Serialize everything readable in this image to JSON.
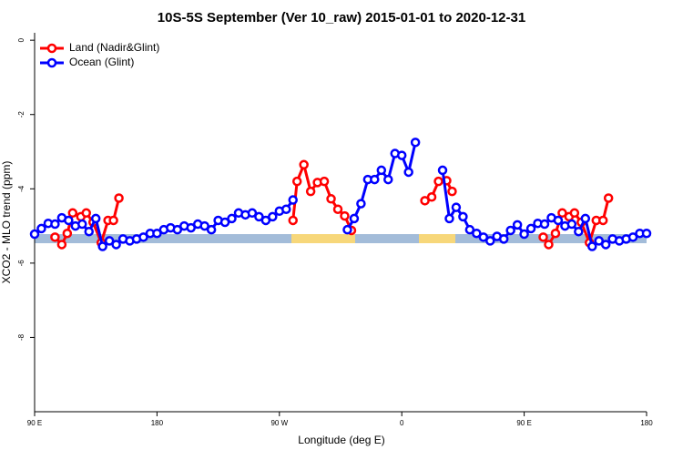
{
  "chart_data": {
    "type": "line",
    "title": "10S-5S September (Ver 10_raw)   2015-01-01 to 2020-12-31",
    "x_label": "Longitude (deg E)",
    "y_label": "XCO2 - MLO trend (ppm)",
    "xlim": [
      90,
      540
    ],
    "ylim": [
      -10,
      0.2
    ],
    "xticks": [
      {
        "value": 90,
        "label": "90 E"
      },
      180,
      {
        "value": 270,
        "label": "90 W"
      },
      {
        "value": 360,
        "label": "0"
      },
      {
        "value": 450,
        "label": "90 E"
      },
      {
        "value": 540,
        "label": "180"
      }
    ],
    "yticks": [
      0,
      -2,
      -4,
      -6,
      -8
    ],
    "legend": "top-left",
    "series": [
      {
        "name": "Land (Nadir&Glint)",
        "color": "#ff0000",
        "x": [
          105,
          110,
          114,
          118,
          124,
          128,
          133,
          139,
          144,
          148,
          152,
          200,
          280,
          283,
          288,
          293,
          298,
          303,
          308,
          313,
          318,
          323,
          350,
          377,
          382,
          387,
          393,
          397,
          430,
          464,
          468,
          473,
          478,
          483,
          487,
          492,
          498,
          503,
          508,
          512
        ],
        "values": [
          -5.3,
          -5.5,
          -5.2,
          -4.65,
          -4.75,
          -4.65,
          -4.9,
          -5.45,
          -4.85,
          -4.85,
          -4.25,
          null,
          -4.85,
          -3.8,
          -3.35,
          -4.07,
          -3.83,
          -3.8,
          -4.27,
          -4.55,
          -4.73,
          -5.12,
          null,
          -4.32,
          -4.22,
          -3.8,
          -3.78,
          -4.07,
          null,
          -5.3,
          -5.5,
          -5.2,
          -4.65,
          -4.75,
          -4.65,
          -4.9,
          -5.45,
          -4.85,
          -4.85,
          -4.25
        ]
      },
      {
        "name": "Ocean (Glint)",
        "color": "#0000ff",
        "x": [
          90,
          95,
          100,
          105,
          110,
          115,
          120,
          125,
          130,
          135,
          140,
          145,
          150,
          155,
          160,
          165,
          170,
          175,
          180,
          185,
          190,
          195,
          200,
          205,
          210,
          215,
          220,
          225,
          230,
          235,
          240,
          245,
          250,
          255,
          260,
          265,
          270,
          275,
          280,
          300,
          320,
          325,
          330,
          335,
          340,
          345,
          350,
          355,
          360,
          365,
          370,
          380,
          390,
          395,
          400,
          405,
          410,
          415,
          420,
          425,
          430,
          435,
          440,
          445,
          450,
          455,
          460,
          465,
          470,
          475,
          480,
          485,
          490,
          495,
          500,
          505,
          510,
          515,
          520,
          525,
          530,
          535,
          540
        ],
        "values": [
          -5.22,
          -5.07,
          -4.93,
          -4.95,
          -4.78,
          -4.85,
          -5.0,
          -4.95,
          -5.15,
          -4.8,
          -5.55,
          -5.4,
          -5.5,
          -5.35,
          -5.4,
          -5.35,
          -5.3,
          -5.2,
          -5.2,
          -5.1,
          -5.05,
          -5.1,
          -5.0,
          -5.05,
          -4.95,
          -5.0,
          -5.1,
          -4.85,
          -4.9,
          -4.8,
          -4.65,
          -4.7,
          -4.65,
          -4.75,
          -4.85,
          -4.75,
          -4.6,
          -4.55,
          -4.3,
          null,
          -5.1,
          -4.8,
          -4.4,
          -3.75,
          -3.75,
          -3.5,
          -3.75,
          -3.05,
          -3.1,
          -3.55,
          -2.75,
          null,
          -3.5,
          -4.8,
          -4.5,
          -4.75,
          -5.1,
          -5.2,
          -5.3,
          -5.4,
          -5.28,
          -5.35,
          -5.12,
          -4.97,
          -5.22,
          -5.07,
          -4.93,
          -4.95,
          -4.78,
          -4.85,
          -5.0,
          -4.95,
          -5.15,
          -4.8,
          -5.55,
          -5.4,
          -5.5,
          -5.35,
          -5.4,
          -5.35,
          -5.3,
          -5.2,
          -5.2
        ]
      }
    ]
  }
}
